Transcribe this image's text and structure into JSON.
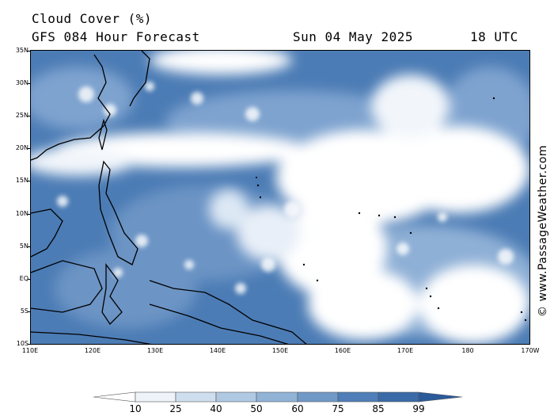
{
  "header": {
    "title": "Cloud Cover (%)",
    "model_line": "GFS 084 Hour Forecast",
    "date": "Sun 04 May 2025",
    "time": "18 UTC"
  },
  "credit": "© www.PassageWeather.com",
  "lat_labels": [
    "35N",
    "30N",
    "25N",
    "20N",
    "15N",
    "10N",
    "5N",
    "EQ",
    "5S",
    "10S"
  ],
  "lon_labels": [
    "110E",
    "120E",
    "130E",
    "140E",
    "150E",
    "160E",
    "170E",
    "180",
    "170W"
  ],
  "colorbar": {
    "labels": [
      "10",
      "25",
      "40",
      "50",
      "60",
      "75",
      "85",
      "99"
    ],
    "colors": [
      "#ffffff",
      "#eef3f9",
      "#cfdeee",
      "#b0c9e3",
      "#91b3d6",
      "#7099c8",
      "#4f7eb8",
      "#3a6aa8",
      "#2b5a9a"
    ]
  },
  "colors": {
    "overcast": "#ffffff",
    "clear": "#3d6ca6",
    "mid": "#7a9fcc",
    "coast": "#000000"
  }
}
